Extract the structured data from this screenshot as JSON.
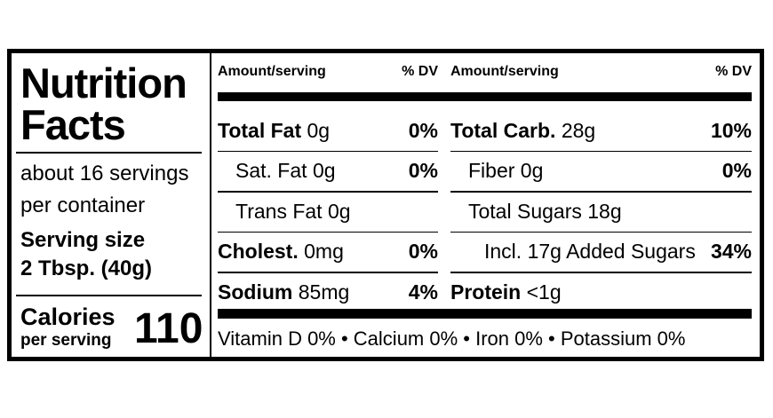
{
  "title_line1": "Nutrition",
  "title_line2": "Facts",
  "servings_line1": "about 16 servings",
  "servings_line2": "per container",
  "serving_size_label": "Serving size",
  "serving_size": "2 Tbsp. (40g)",
  "calories_label": "Calories",
  "calories_sublabel": "per serving",
  "calories": 110,
  "columns": [
    {
      "header": {
        "amount": "Amount/serving",
        "dv": "% DV"
      },
      "rows": [
        {
          "name": "Total Fat",
          "amount": "0g",
          "dv": "0%"
        },
        {
          "name": "Sat. Fat",
          "amount": "0g",
          "dv": "0%"
        },
        {
          "name": "Trans Fat",
          "amount": "0g"
        },
        {
          "name": "Cholest.",
          "amount": "0mg",
          "dv": "0%"
        },
        {
          "name": "Sodium",
          "amount": "85mg",
          "dv": "4%"
        }
      ]
    },
    {
      "header": {
        "amount": "Amount/serving",
        "dv": "% DV"
      },
      "rows": [
        {
          "name": "Total Carb.",
          "amount": "28g",
          "dv": "10%"
        },
        {
          "name": "Fiber",
          "amount": "0g",
          "dv": "0%"
        },
        {
          "name": "Total Sugars",
          "amount": "18g"
        },
        {
          "name": "Incl. 17g Added Sugars",
          "dv": "34%"
        },
        {
          "name": "Protein",
          "amount": "<1g"
        }
      ]
    }
  ],
  "footer": "Vitamin D 0% • Calcium 0% • Iron 0% • Potassium 0%"
}
